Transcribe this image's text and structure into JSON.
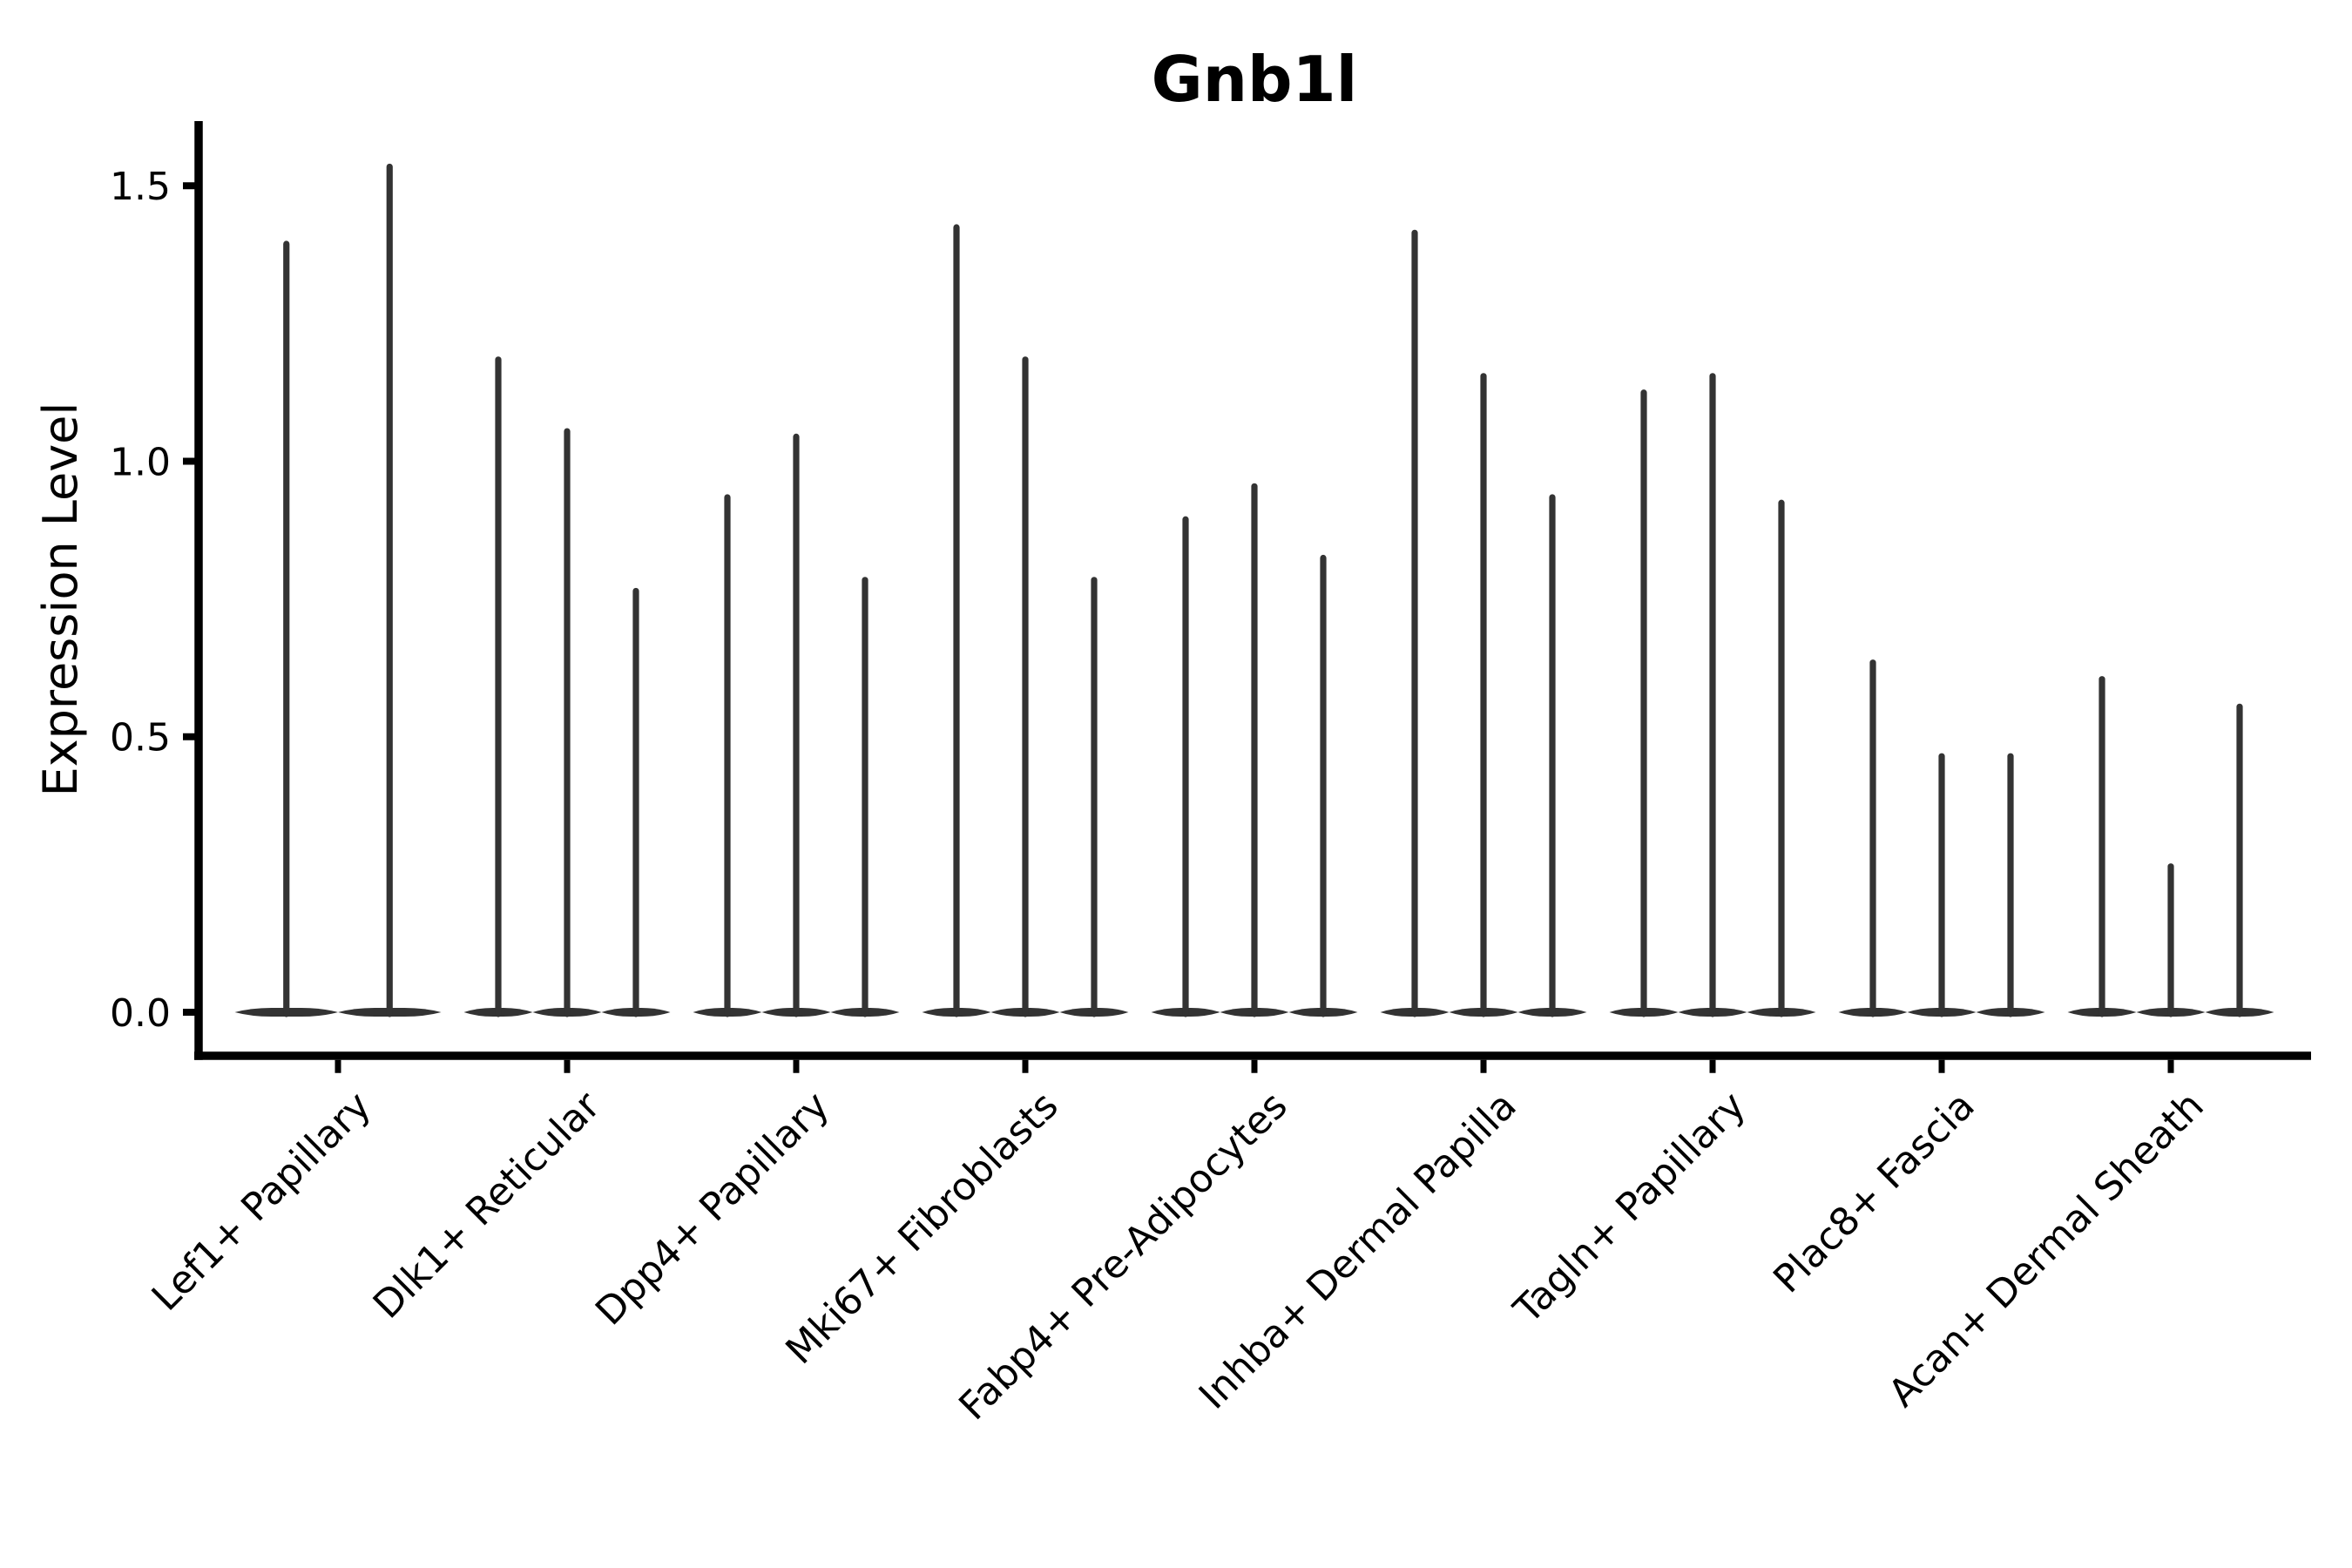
{
  "page": {
    "background": "#ffffff"
  },
  "chart_data": {
    "type": "violin",
    "title": "Gnb1l",
    "xlabel": "",
    "ylabel": "Expression Level",
    "y_axis": {
      "tick_labels": [
        "0.0",
        "0.5",
        "1.0",
        "1.5"
      ],
      "tick_values": [
        0.0,
        0.5,
        1.0,
        1.5
      ],
      "range": [
        -0.08,
        1.62
      ]
    },
    "categories": [
      "Lef1+ Papillary",
      "Dlk1+ Reticular",
      "Dpp4+ Papillary",
      "Mki67+ Fibroblasts",
      "Fabp4+ Pre-Adipocytes",
      "Inhba+ Dermal Papilla",
      "Tagln+ Papillary",
      "Plac8+ Fascia",
      "Acan+ Dermal Sheath"
    ],
    "groups": [
      {
        "label": "Lef1+ Papillary",
        "violin_max_values": [
          1.4,
          1.54
        ]
      },
      {
        "label": "Dlk1+ Reticular",
        "violin_max_values": [
          1.19,
          1.06,
          0.77
        ]
      },
      {
        "label": "Dpp4+ Papillary",
        "violin_max_values": [
          0.94,
          1.05,
          0.79
        ]
      },
      {
        "label": "Mki67+ Fibroblasts",
        "violin_max_values": [
          1.43,
          1.19,
          0.79
        ]
      },
      {
        "label": "Fabp4+ Pre-Adipocytes",
        "violin_max_values": [
          0.9,
          0.96,
          0.83
        ]
      },
      {
        "label": "Inhba+ Dermal Papilla",
        "violin_max_values": [
          1.42,
          1.16,
          0.94
        ]
      },
      {
        "label": "Tagln+ Papillary",
        "violin_max_values": [
          1.13,
          1.16,
          0.93
        ]
      },
      {
        "label": "Plac8+ Fascia",
        "violin_max_values": [
          0.64,
          0.47,
          0.47
        ]
      },
      {
        "label": "Acan+ Dermal Sheath",
        "violin_max_values": [
          0.61,
          0.27,
          0.56
        ]
      }
    ],
    "violin_min_value": 0.0,
    "violin_color": "#333333",
    "axis_color": "#000000",
    "text_color": "#000000",
    "grid": false,
    "legend_position": "none",
    "x_tick_rotation_deg": 45
  }
}
